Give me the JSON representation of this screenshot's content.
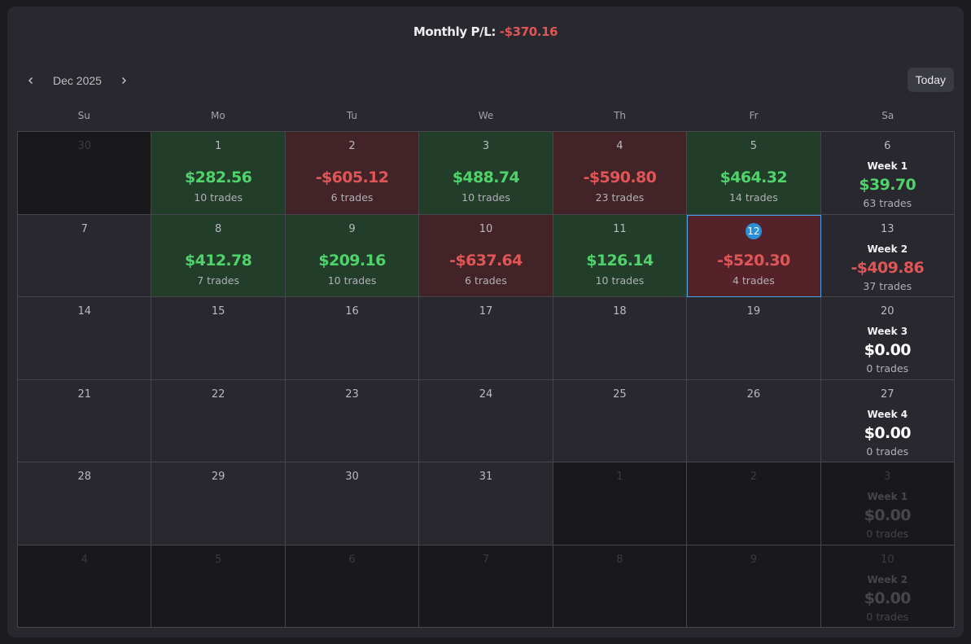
{
  "header": {
    "label": "Monthly P/L:",
    "value": "-$370.16"
  },
  "nav": {
    "month": "Dec 2025",
    "prev_icon": "chevron-left-icon",
    "next_icon": "chevron-right-icon",
    "today_label": "Today"
  },
  "weekdays": [
    "Su",
    "Mo",
    "Tu",
    "We",
    "Th",
    "Fr",
    "Sa"
  ],
  "colors": {
    "positive": "#4fd36a",
    "negative": "#e05656",
    "positive_bg": "#223d29",
    "negative_bg": "#422428",
    "today_badge": "#2a8fd6"
  },
  "calendar": {
    "weeks": [
      [
        {
          "day": "30",
          "outside": true
        },
        {
          "day": "1",
          "pl": "$282.56",
          "trades": "10 trades",
          "sign": "pos"
        },
        {
          "day": "2",
          "pl": "-$605.12",
          "trades": "6 trades",
          "sign": "neg"
        },
        {
          "day": "3",
          "pl": "$488.74",
          "trades": "10 trades",
          "sign": "pos"
        },
        {
          "day": "4",
          "pl": "-$590.80",
          "trades": "23 trades",
          "sign": "neg"
        },
        {
          "day": "5",
          "pl": "$464.32",
          "trades": "14 trades",
          "sign": "pos"
        },
        {
          "day": "6",
          "week_label": "Week 1",
          "week_pl": "$39.70",
          "week_trades": "63 trades",
          "sign": "pos"
        }
      ],
      [
        {
          "day": "7"
        },
        {
          "day": "8",
          "pl": "$412.78",
          "trades": "7 trades",
          "sign": "pos"
        },
        {
          "day": "9",
          "pl": "$209.16",
          "trades": "10 trades",
          "sign": "pos"
        },
        {
          "day": "10",
          "pl": "-$637.64",
          "trades": "6 trades",
          "sign": "neg"
        },
        {
          "day": "11",
          "pl": "$126.14",
          "trades": "10 trades",
          "sign": "pos"
        },
        {
          "day": "12",
          "pl": "-$520.30",
          "trades": "4 trades",
          "sign": "neg",
          "today": true
        },
        {
          "day": "13",
          "week_label": "Week 2",
          "week_pl": "-$409.86",
          "week_trades": "37 trades",
          "sign": "neg"
        }
      ],
      [
        {
          "day": "14"
        },
        {
          "day": "15"
        },
        {
          "day": "16"
        },
        {
          "day": "17"
        },
        {
          "day": "18"
        },
        {
          "day": "19"
        },
        {
          "day": "20",
          "week_label": "Week 3",
          "week_pl": "$0.00",
          "week_trades": "0 trades",
          "sign": "zero"
        }
      ],
      [
        {
          "day": "21"
        },
        {
          "day": "22"
        },
        {
          "day": "23"
        },
        {
          "day": "24"
        },
        {
          "day": "25"
        },
        {
          "day": "26"
        },
        {
          "day": "27",
          "week_label": "Week 4",
          "week_pl": "$0.00",
          "week_trades": "0 trades",
          "sign": "zero"
        }
      ],
      [
        {
          "day": "28"
        },
        {
          "day": "29"
        },
        {
          "day": "30"
        },
        {
          "day": "31"
        },
        {
          "day": "1",
          "outside": true
        },
        {
          "day": "2",
          "outside": true
        },
        {
          "day": "3",
          "outside": true,
          "week_label": "Week 1",
          "week_pl": "$0.00",
          "week_trades": "0 trades",
          "sign": "zero"
        }
      ],
      [
        {
          "day": "4",
          "outside": true
        },
        {
          "day": "5",
          "outside": true
        },
        {
          "day": "6",
          "outside": true
        },
        {
          "day": "7",
          "outside": true
        },
        {
          "day": "8",
          "outside": true
        },
        {
          "day": "9",
          "outside": true
        },
        {
          "day": "10",
          "outside": true,
          "week_label": "Week 2",
          "week_pl": "$0.00",
          "week_trades": "0 trades",
          "sign": "zero"
        }
      ]
    ]
  }
}
